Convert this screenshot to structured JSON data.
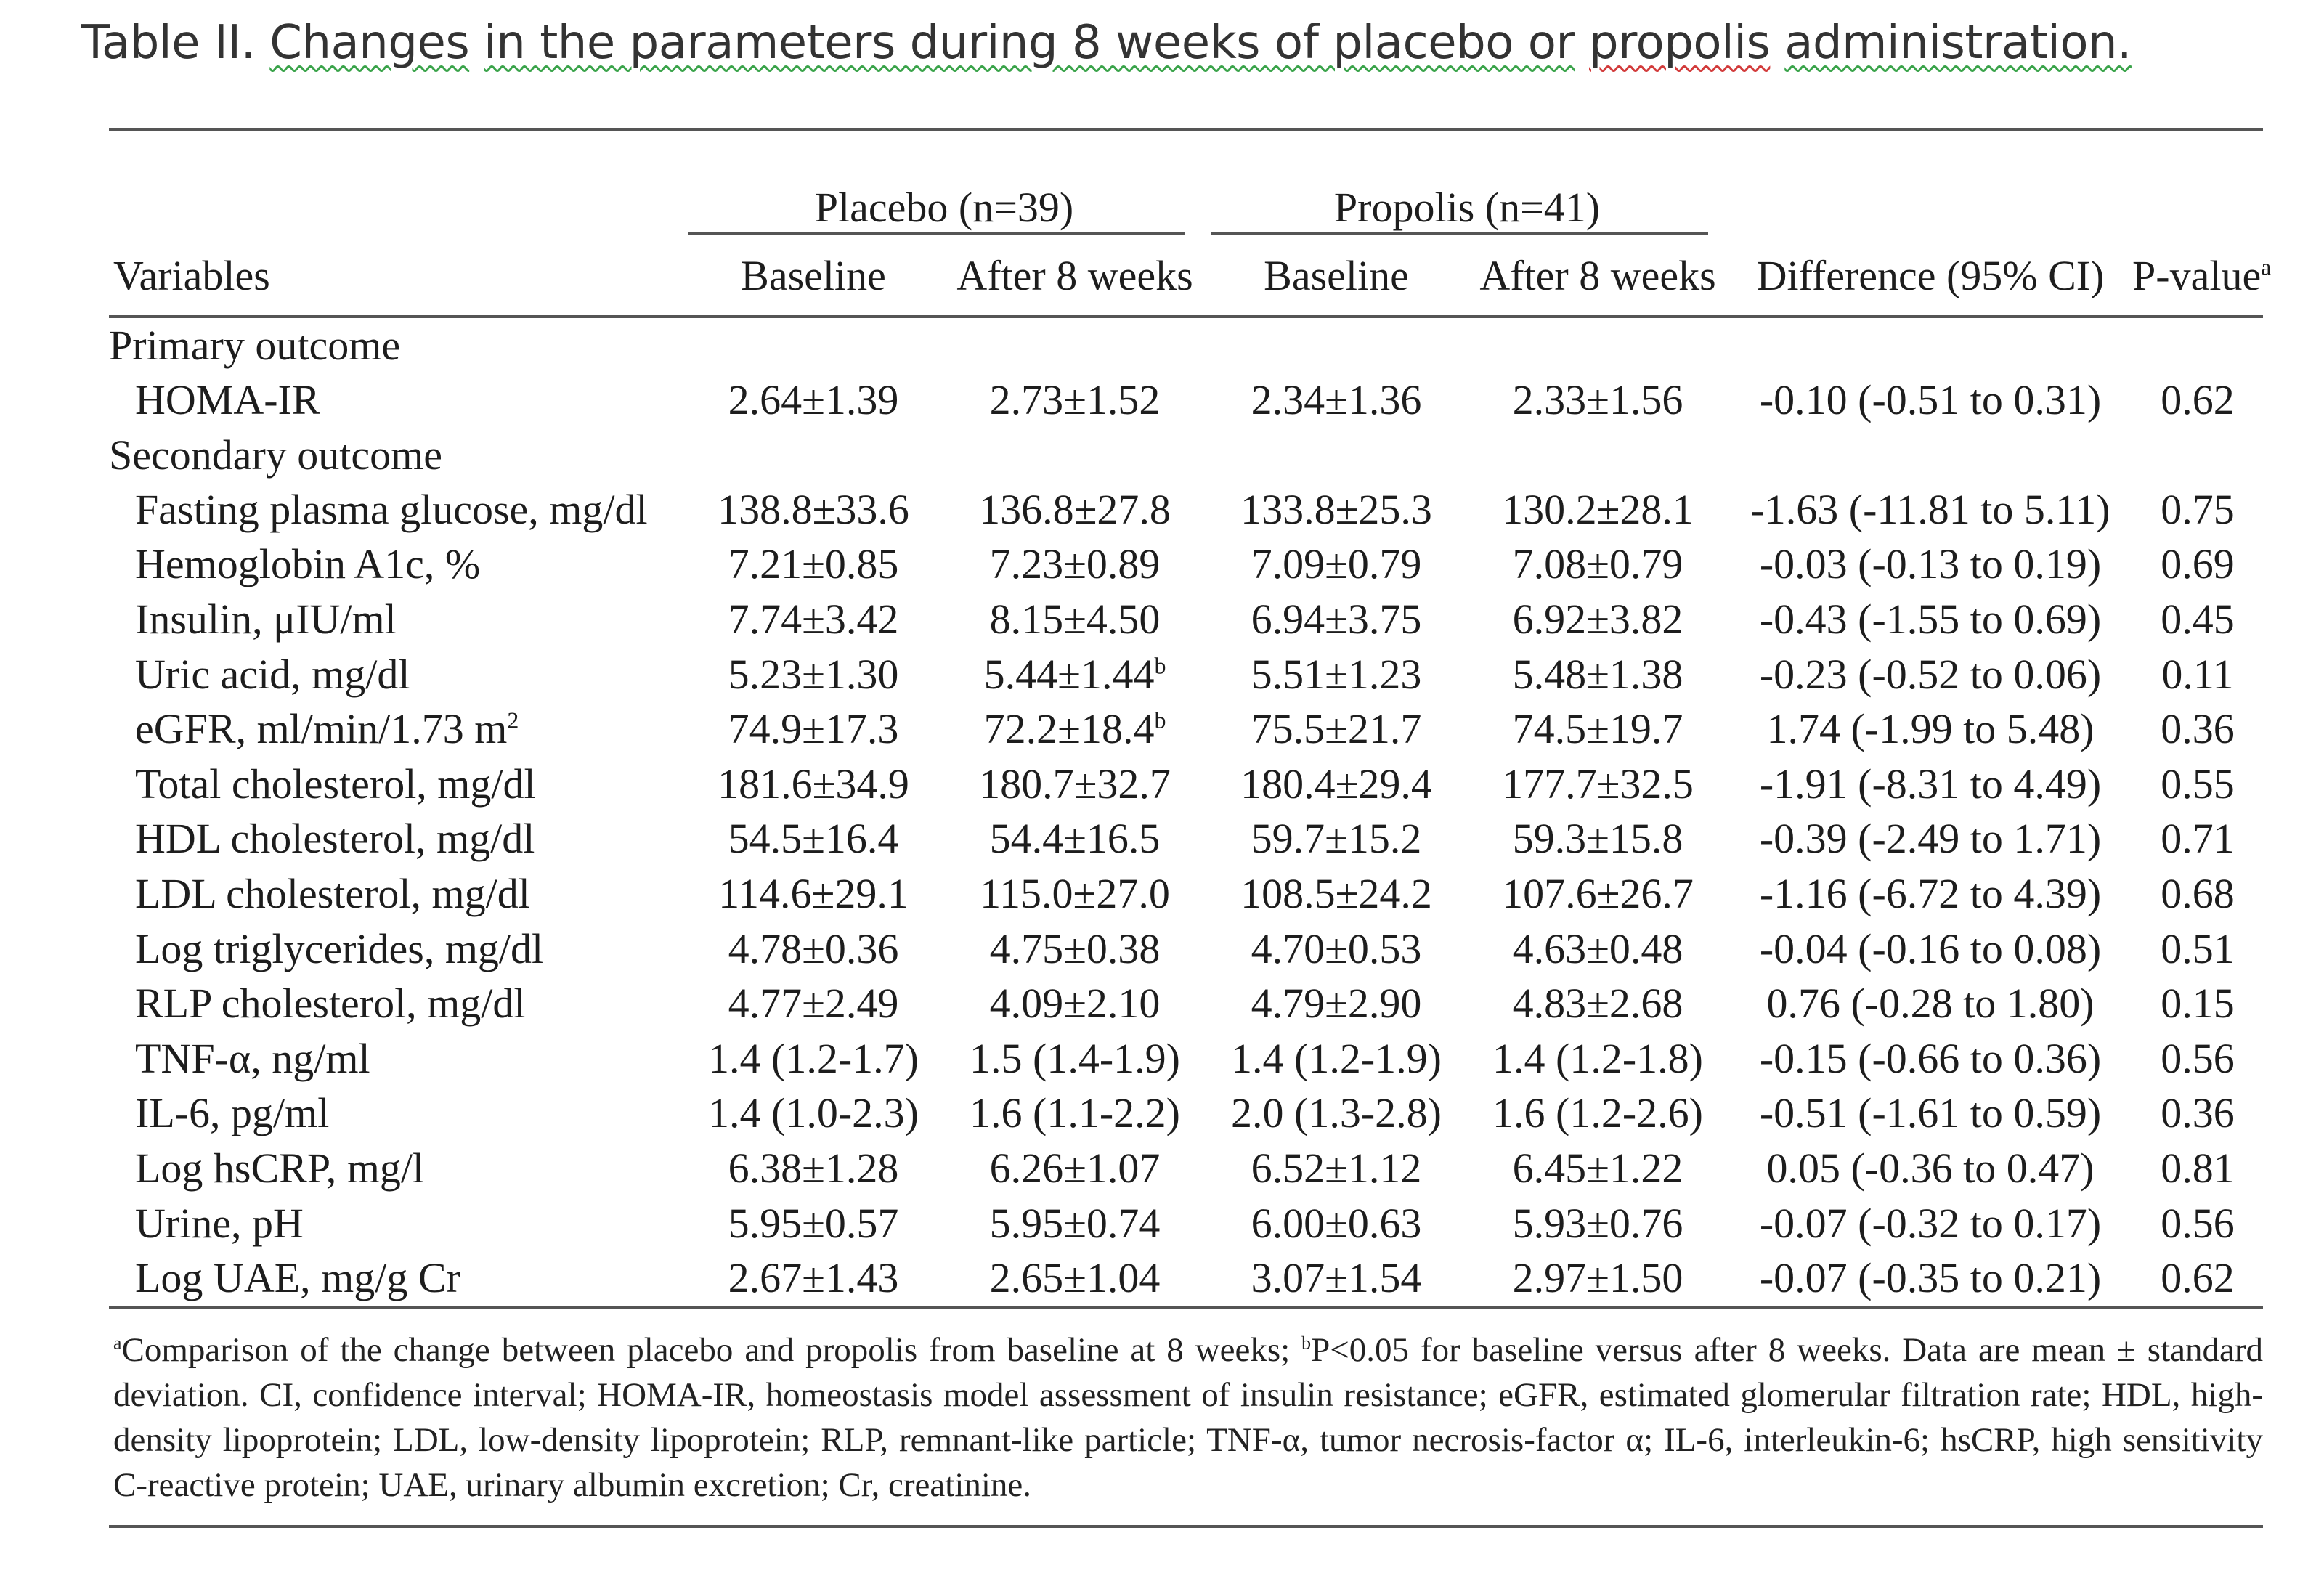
{
  "caption": {
    "prefix": "Table II. ",
    "w1": "Changes",
    "w2": "in the parameters during 8 weeks of placebo or",
    "w3": "propolis",
    "w4": "administration."
  },
  "table": {
    "groups": {
      "placebo": "Placebo (n=39)",
      "propolis": "Propolis (n=41)"
    },
    "headers": {
      "variables": "Variables",
      "placebo_baseline": "Baseline",
      "placebo_after": "After 8 weeks",
      "propolis_baseline": "Baseline",
      "propolis_after": "After 8 weeks",
      "difference": "Difference (95% CI)",
      "pvalue": "P-value",
      "pvalue_sup": "a"
    },
    "sections": [
      {
        "title": "Primary outcome",
        "rows": [
          {
            "variable": "HOMA-IR",
            "v1": "2.64±1.39",
            "v2": "2.73±1.52",
            "v3": "2.34±1.36",
            "v4": "2.33±1.56",
            "diff": "-0.10 (-0.51 to 0.31)",
            "p": "0.62"
          }
        ]
      },
      {
        "title": "Secondary outcome",
        "rows": [
          {
            "variable": "Fasting plasma glucose, mg/dl",
            "v1": "138.8±33.6",
            "v2": "136.8±27.8",
            "v3": "133.8±25.3",
            "v4": "130.2±28.1",
            "diff": "-1.63 (-11.81 to 5.11)",
            "p": "0.75"
          },
          {
            "variable": "Hemoglobin A1c, %",
            "v1": "7.21±0.85",
            "v2": "7.23±0.89",
            "v3": "7.09±0.79",
            "v4": "7.08±0.79",
            "diff": "-0.03 (-0.13 to 0.19)",
            "p": "0.69"
          },
          {
            "variable": "Insulin, μIU/ml",
            "v1": "7.74±3.42",
            "v2": "8.15±4.50",
            "v3": "6.94±3.75",
            "v4": "6.92±3.82",
            "diff": "-0.43 (-1.55 to 0.69)",
            "p": "0.45"
          },
          {
            "variable": "Uric acid, mg/dl",
            "v1": "5.23±1.30",
            "v2": "5.44±1.44",
            "v2_sup": "b",
            "v3": "5.51±1.23",
            "v4": "5.48±1.38",
            "diff": "-0.23 (-0.52 to 0.06)",
            "p": "0.11"
          },
          {
            "variable": "eGFR, ml/min/1.73 m",
            "variable_sup": "2",
            "v1": "74.9±17.3",
            "v2": "72.2±18.4",
            "v2_sup": "b",
            "v3": "75.5±21.7",
            "v4": "74.5±19.7",
            "diff": "1.74 (-1.99 to 5.48)",
            "p": "0.36"
          },
          {
            "variable": "Total cholesterol, mg/dl",
            "v1": "181.6±34.9",
            "v2": "180.7±32.7",
            "v3": "180.4±29.4",
            "v4": "177.7±32.5",
            "diff": "-1.91 (-8.31 to 4.49)",
            "p": "0.55"
          },
          {
            "variable": "HDL cholesterol, mg/dl",
            "v1": "54.5±16.4",
            "v2": "54.4±16.5",
            "v3": "59.7±15.2",
            "v4": "59.3±15.8",
            "diff": "-0.39 (-2.49 to 1.71)",
            "p": "0.71"
          },
          {
            "variable": "LDL cholesterol, mg/dl",
            "v1": "114.6±29.1",
            "v2": "115.0±27.0",
            "v3": "108.5±24.2",
            "v4": "107.6±26.7",
            "diff": "-1.16 (-6.72 to 4.39)",
            "p": "0.68"
          },
          {
            "variable": "Log triglycerides, mg/dl",
            "v1": "4.78±0.36",
            "v2": "4.75±0.38",
            "v3": "4.70±0.53",
            "v4": "4.63±0.48",
            "diff": "-0.04 (-0.16 to 0.08)",
            "p": "0.51"
          },
          {
            "variable": "RLP cholesterol, mg/dl",
            "v1": "4.77±2.49",
            "v2": "4.09±2.10",
            "v3": "4.79±2.90",
            "v4": "4.83±2.68",
            "diff": "0.76 (-0.28 to 1.80)",
            "p": "0.15"
          },
          {
            "variable": "TNF-α, ng/ml",
            "v1": "1.4 (1.2-1.7)",
            "v2": "1.5 (1.4-1.9)",
            "v3": "1.4 (1.2-1.9)",
            "v4": "1.4 (1.2-1.8)",
            "diff": "-0.15 (-0.66 to 0.36)",
            "p": "0.56"
          },
          {
            "variable": "IL-6, pg/ml",
            "v1": "1.4 (1.0-2.3)",
            "v2": "1.6 (1.1-2.2)",
            "v3": "2.0 (1.3-2.8)",
            "v4": "1.6 (1.2-2.6)",
            "diff": "-0.51 (-1.61 to 0.59)",
            "p": "0.36"
          },
          {
            "variable": "Log hsCRP, mg/l",
            "v1": "6.38±1.28",
            "v2": "6.26±1.07",
            "v3": "6.52±1.12",
            "v4": "6.45±1.22",
            "diff": "0.05 (-0.36 to 0.47)",
            "p": "0.81"
          },
          {
            "variable": "Urine, pH",
            "v1": "5.95±0.57",
            "v2": "5.95±0.74",
            "v3": "6.00±0.63",
            "v4": "5.93±0.76",
            "diff": "-0.07 (-0.32 to 0.17)",
            "p": "0.56"
          },
          {
            "variable": "Log UAE, mg/g Cr",
            "v1": "2.67±1.43",
            "v2": "2.65±1.04",
            "v3": "3.07±1.54",
            "v4": "2.97±1.50",
            "diff": "-0.07 (-0.35 to 0.21)",
            "p": "0.62"
          }
        ]
      }
    ],
    "footnote": {
      "a_mark": "a",
      "a_text": "Comparison of the change between placebo and propolis from baseline at 8 weeks; ",
      "b_mark": "b",
      "b_text": "P<0.05 for baseline versus after 8 weeks. Data are mean ± standard deviation. CI, confidence interval; HOMA-IR, homeostasis model assessment of insulin resistance; eGFR, estimated glomerular filtration rate; HDL, high-density lipoprotein; LDL, low-density lipoprotein; RLP, remnant-like particle; TNF-α, tumor necrosis-factor α; IL-6, interleukin-6; hsCRP, high sensitivity C-reactive protein; UAE, urinary albumin excretion; Cr, creatinine."
    }
  }
}
